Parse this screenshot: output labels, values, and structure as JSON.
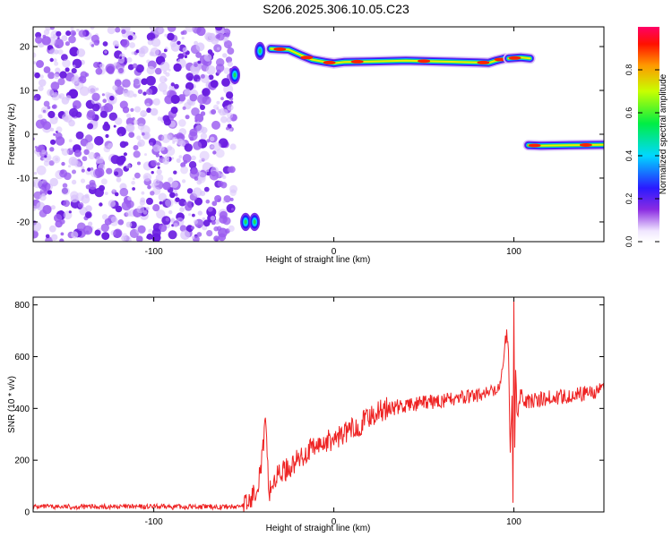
{
  "figure": {
    "title": "S206.2025.306.10.05.C23"
  },
  "colors": {
    "snr_line": "#ee2222",
    "noise_purple": "#7a2fe6",
    "background": "#ffffff",
    "axis": "#000000"
  },
  "chart_data": [
    {
      "type": "heatmap",
      "title": "",
      "xlabel": "Height of straight line (km)",
      "ylabel": "Frequency (Hz)",
      "xlim": [
        -167,
        150
      ],
      "ylim": [
        -24.5,
        24.5
      ],
      "xticks": [
        -100,
        0,
        100
      ],
      "xtick_labels": [
        "-100",
        "0",
        "100"
      ],
      "yticks": [
        -20,
        -10,
        0,
        10,
        20
      ],
      "ytick_labels": [
        "-20",
        "-10",
        "0",
        "10",
        "20"
      ],
      "colorscale": "rainbow (white to violet to blue to cyan to green to yellow to red)",
      "colorbar": {
        "label": "Normalized spectral amplitude",
        "range": [
          0,
          1
        ],
        "ticks": [
          0.0,
          0.2,
          0.4,
          0.6,
          0.8
        ],
        "tick_labels": [
          "0.0",
          "0.2",
          "0.4",
          "0.6",
          "0.8"
        ]
      },
      "noise_region_x": [
        -167,
        -55
      ],
      "features": [
        {
          "name": "main-track",
          "x": [
            -35,
            -25,
            -18,
            -12,
            -5,
            0,
            6,
            20,
            40,
            60,
            80,
            86,
            90,
            95
          ],
          "y": [
            19.5,
            19.3,
            18,
            17,
            16.5,
            16.2,
            16.5,
            16.6,
            16.8,
            16.6,
            16.4,
            16.3,
            16.8,
            17.3
          ]
        },
        {
          "name": "upper-right-segment",
          "x": [
            97,
            104,
            109
          ],
          "y": [
            17.3,
            17.5,
            17.3
          ]
        },
        {
          "name": "lower-right-segment",
          "x": [
            108,
            115,
            130,
            150
          ],
          "y": [
            -2.5,
            -2.6,
            -2.5,
            -2.4
          ]
        },
        {
          "name": "left-edge-blobs",
          "x": [
            -55,
            -49,
            -44,
            -41
          ],
          "y": [
            13.5,
            -20,
            -20,
            19
          ]
        }
      ]
    },
    {
      "type": "line",
      "title": "",
      "xlabel": "Height of straight line (km)",
      "ylabel": "SNR (10 * v/v)",
      "xlim": [
        -167,
        150
      ],
      "ylim": [
        0,
        830
      ],
      "xticks": [
        -100,
        0,
        100
      ],
      "xtick_labels": [
        "-100",
        "0",
        "100"
      ],
      "yticks": [
        0,
        200,
        400,
        600,
        800
      ],
      "ytick_labels": [
        "0",
        "200",
        "400",
        "600",
        "800"
      ],
      "series": [
        {
          "x": [
            -167,
            -150,
            -130,
            -110,
            -90,
            -70,
            -55,
            -48,
            -45,
            -42,
            -40,
            -38,
            -36,
            -33,
            -30,
            -25,
            -20,
            -15,
            -10,
            -5,
            0,
            5,
            10,
            15,
            20,
            25,
            30,
            40,
            50,
            60,
            70,
            80,
            85,
            90,
            92,
            94,
            96,
            97,
            98,
            99,
            99.5,
            100,
            100.5,
            101,
            102,
            104,
            106,
            110,
            120,
            130,
            140,
            150
          ],
          "y": [
            20,
            20,
            20,
            20,
            20,
            20,
            20,
            30,
            60,
            120,
            200,
            340,
            80,
            120,
            150,
            170,
            200,
            230,
            250,
            270,
            280,
            300,
            320,
            340,
            370,
            390,
            400,
            410,
            420,
            430,
            440,
            450,
            460,
            460,
            500,
            560,
            700,
            600,
            250,
            450,
            40,
            830,
            240,
            540,
            350,
            480,
            430,
            430,
            440,
            450,
            460,
            470
          ]
        }
      ]
    }
  ]
}
